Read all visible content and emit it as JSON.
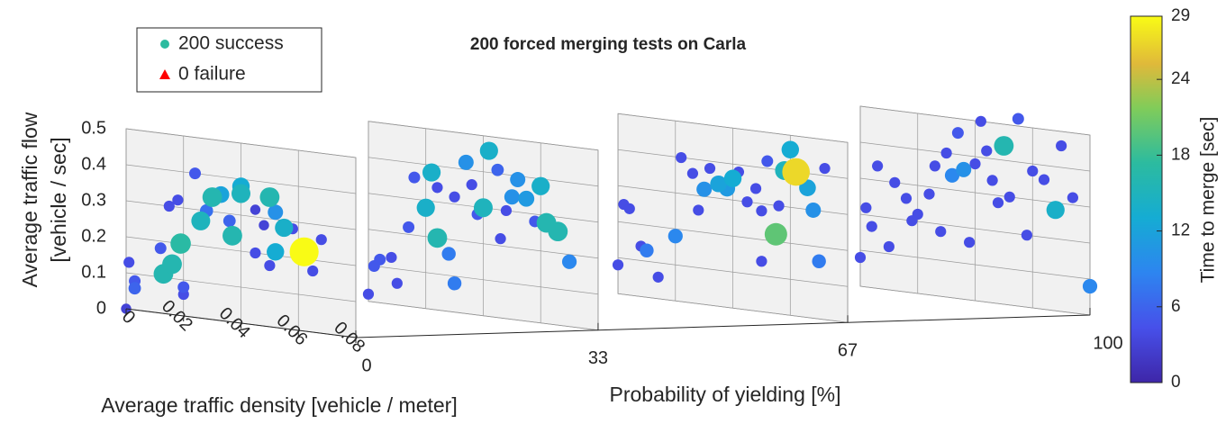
{
  "chart_data": {
    "type": "scatter",
    "title": "200 forced merging tests on Carla",
    "x_label": "Average traffic density [vehicle / meter]",
    "y_label": [
      "Average traffic flow",
      "[vehicle / sec]"
    ],
    "z_label": "Probability of yielding [%]",
    "colorbar_label": "Time to merge [sec]",
    "legend": [
      {
        "name": "200 success",
        "color": "#2cbb9f",
        "marker": "circle"
      },
      {
        "name": "0 failure",
        "color": "#ff0000",
        "marker": "triangle"
      }
    ],
    "xlim": [
      0,
      0.08
    ],
    "xticks": [
      0,
      0.02,
      0.04,
      0.06,
      0.08
    ],
    "ylim": [
      0,
      0.5
    ],
    "yticks": [
      0,
      0.1,
      0.2,
      0.3,
      0.4,
      0.5
    ],
    "zlim": [
      0,
      100
    ],
    "zticks": [
      0,
      33,
      67,
      100
    ],
    "clim": [
      0,
      29
    ],
    "cticks": [
      0,
      6,
      12,
      18,
      24,
      29
    ],
    "panels": [
      {
        "z": 0,
        "density": [
          0,
          0.001,
          0.003,
          0.003,
          0.012,
          0.013,
          0.016,
          0.019,
          0.02,
          0.02,
          0.024,
          0.026,
          0.028,
          0.03,
          0.033,
          0.036,
          0.037,
          0.04,
          0.04,
          0.045,
          0.048,
          0.05,
          0.052,
          0.052,
          0.055,
          0.058,
          0.062,
          0.068,
          0.065,
          0.05,
          0.045,
          0.018,
          0.015
        ],
        "flow": [
          0,
          0.13,
          0.06,
          0.08,
          0.18,
          0.11,
          0.14,
          0.2,
          0.08,
          0.06,
          0.4,
          0.27,
          0.3,
          0.34,
          0.35,
          0.28,
          0.24,
          0.36,
          0.38,
          0.32,
          0.28,
          0.36,
          0.32,
          0.21,
          0.28,
          0.28,
          0.22,
          0.26,
          0.17,
          0.17,
          0.2,
          0.32,
          0.3
        ],
        "time": [
          3,
          4,
          6,
          5,
          5,
          16,
          16,
          17,
          5,
          4,
          5,
          15,
          7,
          16,
          12,
          6,
          16,
          15,
          13,
          3,
          3,
          16,
          10,
          13,
          14,
          4,
          29,
          4,
          4,
          4,
          4,
          4,
          4
        ]
      },
      {
        "z": 33,
        "density": [
          0,
          0.002,
          0.004,
          0.008,
          0.01,
          0.014,
          0.016,
          0.02,
          0.022,
          0.024,
          0.028,
          0.03,
          0.034,
          0.036,
          0.038,
          0.04,
          0.042,
          0.045,
          0.048,
          0.05,
          0.052,
          0.055,
          0.058,
          0.06,
          0.062,
          0.066,
          0.07,
          0.03,
          0.024,
          0.046
        ],
        "flow": [
          0.02,
          0.1,
          0.12,
          0.13,
          0.06,
          0.22,
          0.36,
          0.28,
          0.38,
          0.2,
          0.16,
          0.32,
          0.42,
          0.36,
          0.28,
          0.3,
          0.46,
          0.41,
          0.3,
          0.34,
          0.39,
          0.34,
          0.28,
          0.38,
          0.28,
          0.26,
          0.18,
          0.08,
          0.34,
          0.22
        ],
        "time": [
          4,
          5,
          5,
          4,
          4,
          5,
          5,
          14,
          14,
          16,
          8,
          4,
          10,
          4,
          5,
          15,
          14,
          6,
          4,
          10,
          10,
          11,
          5,
          14,
          16,
          16,
          9,
          8,
          4,
          4
        ]
      },
      {
        "z": 67,
        "density": [
          0,
          0.002,
          0.004,
          0.008,
          0.01,
          0.014,
          0.02,
          0.022,
          0.026,
          0.03,
          0.032,
          0.035,
          0.038,
          0.04,
          0.042,
          0.045,
          0.048,
          0.05,
          0.052,
          0.055,
          0.058,
          0.06,
          0.062,
          0.064,
          0.066,
          0.068,
          0.07,
          0.072,
          0.05,
          0.056,
          0.028
        ],
        "flow": [
          0.08,
          0.25,
          0.24,
          0.14,
          0.13,
          0.06,
          0.18,
          0.4,
          0.36,
          0.32,
          0.38,
          0.34,
          0.33,
          0.36,
          0.38,
          0.3,
          0.34,
          0.14,
          0.42,
          0.22,
          0.4,
          0.46,
          0.4,
          0.38,
          0.36,
          0.3,
          0.16,
          0.42,
          0.28,
          0.3,
          0.26
        ],
        "time": [
          4,
          4,
          4,
          4,
          8,
          4,
          9,
          4,
          4,
          10,
          4,
          12,
          11,
          13,
          4,
          4,
          4,
          4,
          5,
          20,
          15,
          13,
          27,
          5,
          12,
          10,
          8,
          4,
          4,
          4,
          4
        ]
      },
      {
        "z": 100,
        "density": [
          0,
          0.002,
          0.004,
          0.006,
          0.01,
          0.012,
          0.016,
          0.018,
          0.02,
          0.024,
          0.026,
          0.03,
          0.032,
          0.034,
          0.036,
          0.04,
          0.042,
          0.044,
          0.046,
          0.05,
          0.052,
          0.055,
          0.058,
          0.06,
          0.064,
          0.068,
          0.07,
          0.074,
          0.08,
          0.038,
          0.048,
          0.028
        ],
        "flow": [
          0.08,
          0.22,
          0.17,
          0.34,
          0.12,
          0.3,
          0.26,
          0.2,
          0.22,
          0.28,
          0.36,
          0.4,
          0.34,
          0.46,
          0.36,
          0.38,
          0.5,
          0.42,
          0.34,
          0.44,
          0.3,
          0.52,
          0.2,
          0.38,
          0.36,
          0.28,
          0.46,
          0.32,
          0.08,
          0.16,
          0.28,
          0.18
        ],
        "time": [
          4,
          4,
          4,
          4,
          4,
          4,
          4,
          4,
          4,
          4,
          4,
          4,
          9,
          5,
          10,
          4,
          4,
          4,
          4,
          16,
          4,
          5,
          4,
          4,
          4,
          14,
          4,
          4,
          9,
          4,
          4,
          4
        ]
      }
    ]
  }
}
